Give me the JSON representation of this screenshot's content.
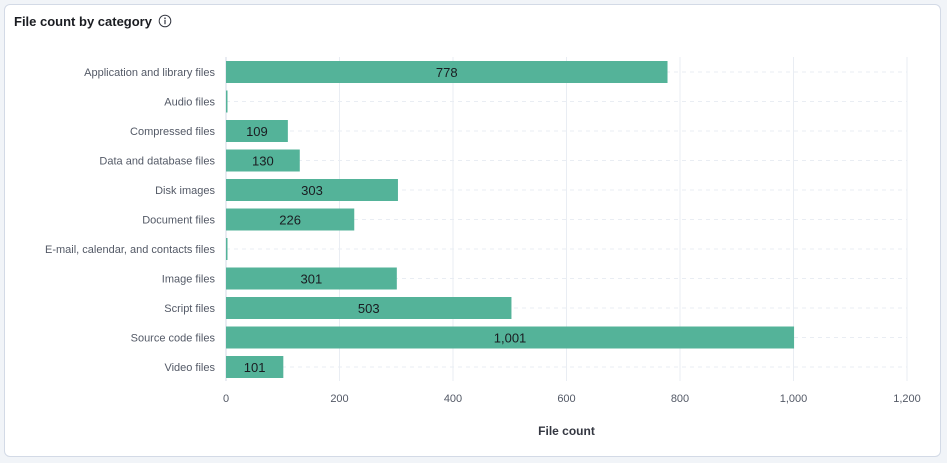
{
  "panel": {
    "title": "File count by category",
    "info_icon": "info-circle-icon"
  },
  "colors": {
    "bar": "#54b399",
    "grid": "#e9edf3",
    "axis_text": "#535966",
    "value_text": "#1a1c21"
  },
  "chart_data": {
    "type": "bar",
    "orientation": "horizontal",
    "title": "File count by category",
    "xlabel": "File count",
    "ylabel": "",
    "xlim": [
      0,
      1200
    ],
    "xticks": [
      0,
      200,
      400,
      600,
      800,
      1000,
      1200
    ],
    "xtick_labels": [
      "0",
      "200",
      "400",
      "600",
      "800",
      "1,000",
      "1,200"
    ],
    "grid": true,
    "legend": "none",
    "categories": [
      "Application and library files",
      "Audio files",
      "Compressed files",
      "Data and database files",
      "Disk images",
      "Document files",
      "E-mail, calendar, and contacts files",
      "Image files",
      "Script files",
      "Source code files",
      "Video files"
    ],
    "values": [
      778,
      2,
      109,
      130,
      303,
      226,
      2,
      301,
      503,
      1001,
      101
    ],
    "value_labels": [
      "778",
      "",
      "109",
      "130",
      "303",
      "226",
      "",
      "301",
      "503",
      "1,001",
      "101"
    ]
  }
}
